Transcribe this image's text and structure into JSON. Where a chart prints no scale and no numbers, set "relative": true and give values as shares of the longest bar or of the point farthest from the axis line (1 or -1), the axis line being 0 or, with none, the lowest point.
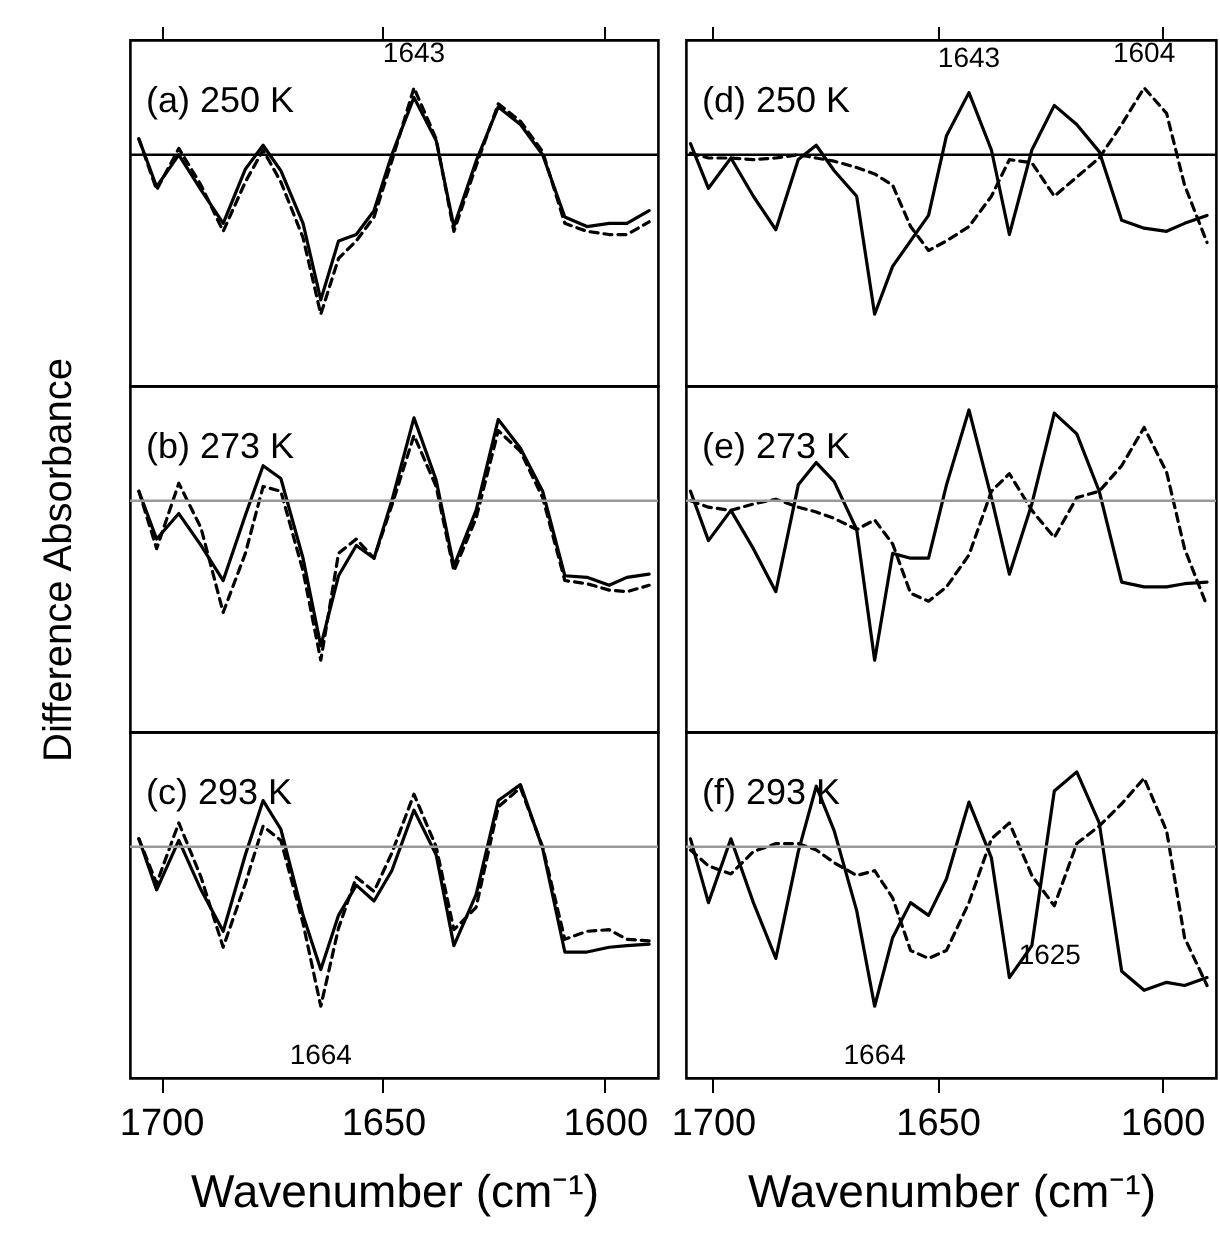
{
  "chart_data": [
    {
      "type": "line",
      "relative": true,
      "tick_labels": false,
      "xlim": [
        1707,
        1588
      ],
      "xticks": [
        {
          "value": 1700,
          "label": null
        },
        {
          "value": 1650,
          "label": null
        },
        {
          "value": 1600,
          "label": null
        }
      ],
      "annotations": [
        "(a) 250 K",
        {
          "text": "1643",
          "x": 1643,
          "y": 0.42
        }
      ],
      "ref_lines": [
        {
          "axis": "y",
          "value": 0,
          "color": "#000000"
        }
      ],
      "x": [
        1705,
        1701,
        1696,
        1691,
        1686,
        1681,
        1677,
        1673,
        1668,
        1664,
        1660,
        1656,
        1652,
        1648,
        1643,
        1638,
        1634,
        1629,
        1624,
        1619,
        1614,
        1609,
        1604,
        1599,
        1595,
        1590
      ],
      "series": [
        {
          "color": "#000000",
          "line_style": "solid",
          "values": [
            0.1,
            -0.2,
            0,
            -0.22,
            -0.43,
            -0.09,
            0.06,
            -0.1,
            -0.43,
            -0.91,
            -0.54,
            -0.5,
            -0.35,
            0,
            0.36,
            0.09,
            -0.45,
            -0.04,
            0.3,
            0.19,
            0,
            -0.39,
            -0.45,
            -0.43,
            -0.43,
            -0.35
          ]
        },
        {
          "color": "#000000",
          "line_style": "dashed",
          "values": [
            0.1,
            -0.22,
            0.04,
            -0.19,
            -0.48,
            -0.17,
            0.03,
            -0.17,
            -0.52,
            -1,
            -0.65,
            -0.54,
            -0.39,
            -0.04,
            0.42,
            0.1,
            -0.48,
            -0.07,
            0.32,
            0.21,
            0.02,
            -0.43,
            -0.48,
            -0.5,
            -0.5,
            -0.42
          ]
        }
      ]
    },
    {
      "type": "line",
      "relative": true,
      "xlim": [
        1707,
        1588
      ],
      "ylabel": "Difference Absorbance",
      "annotations": [
        "(b) 273 K"
      ],
      "ref_lines": [
        {
          "axis": "y",
          "value": 0,
          "color": "#999999"
        }
      ],
      "x": [
        1705,
        1701,
        1696,
        1691,
        1686,
        1681,
        1677,
        1673,
        1668,
        1664,
        1660,
        1656,
        1652,
        1648,
        1643,
        1638,
        1634,
        1629,
        1624,
        1619,
        1614,
        1609,
        1604,
        1599,
        1595,
        1590
      ],
      "series": [
        {
          "color": "#000000",
          "line_style": "solid",
          "values": [
            0.06,
            -0.24,
            -0.08,
            -0.28,
            -0.5,
            -0.09,
            0.22,
            0.14,
            -0.36,
            -0.91,
            -0.47,
            -0.28,
            -0.36,
            0,
            0.52,
            0.13,
            -0.41,
            -0.06,
            0.51,
            0.33,
            0.06,
            -0.47,
            -0.48,
            -0.53,
            -0.48,
            -0.46
          ]
        },
        {
          "color": "#000000",
          "line_style": "dashed",
          "values": [
            0.06,
            -0.3,
            0.11,
            -0.17,
            -0.7,
            -0.33,
            0.09,
            0.06,
            -0.44,
            -1,
            -0.33,
            -0.24,
            -0.36,
            -0.03,
            0.41,
            0.09,
            -0.44,
            -0.11,
            0.44,
            0.31,
            0.02,
            -0.5,
            -0.52,
            -0.56,
            -0.57,
            -0.53
          ]
        }
      ]
    },
    {
      "type": "line",
      "relative": true,
      "tick_labels": "x",
      "xlim": [
        1707,
        1588
      ],
      "xticks": [
        1700,
        1650,
        1600
      ],
      "xlabel": "Wavenumber (cm⁻¹)",
      "annotations": [
        "(c) 293 K",
        {
          "text": "1664",
          "x": 1664,
          "y": -1
        }
      ],
      "ref_lines": [
        {
          "axis": "y",
          "value": 0,
          "color": "#999999"
        }
      ],
      "x": [
        1705,
        1701,
        1696,
        1691,
        1686,
        1681,
        1677,
        1673,
        1668,
        1664,
        1660,
        1656,
        1652,
        1648,
        1643,
        1638,
        1634,
        1629,
        1624,
        1619,
        1614,
        1609,
        1604,
        1599,
        1595,
        1590
      ],
      "series": [
        {
          "color": "#000000",
          "line_style": "solid",
          "values": [
            0.05,
            -0.27,
            0.04,
            -0.27,
            -0.53,
            -0.05,
            0.29,
            0.11,
            -0.43,
            -0.77,
            -0.43,
            -0.24,
            -0.34,
            -0.15,
            0.23,
            -0.05,
            -0.62,
            -0.3,
            0.29,
            0.39,
            -0.01,
            -0.66,
            -0.66,
            -0.63,
            -0.62,
            -0.61
          ]
        },
        {
          "color": "#000000",
          "line_style": "dashed",
          "values": [
            0.05,
            -0.23,
            0.15,
            -0.19,
            -0.63,
            -0.23,
            0.13,
            0.04,
            -0.48,
            -1,
            -0.51,
            -0.19,
            -0.28,
            -0.04,
            0.33,
            0,
            -0.52,
            -0.38,
            0.25,
            0.37,
            0,
            -0.58,
            -0.53,
            -0.52,
            -0.58,
            -0.59
          ]
        }
      ]
    },
    {
      "type": "line",
      "relative": true,
      "tick_labels": false,
      "xlim": [
        1706,
        1588
      ],
      "xticks": [
        {
          "value": 1700,
          "label": null
        },
        {
          "value": 1650,
          "label": null
        },
        {
          "value": 1600,
          "label": null
        }
      ],
      "annotations": [
        "(d) 250 K",
        {
          "text": "1643",
          "x": 1643,
          "y": 0.39
        },
        {
          "text": "1604",
          "x": 1604,
          "y": 0.42
        }
      ],
      "ref_lines": [
        {
          "axis": "y",
          "value": 0,
          "color": "#000000"
        }
      ],
      "x": [
        1705,
        1701,
        1696,
        1691,
        1686,
        1681,
        1677,
        1673,
        1668,
        1664,
        1660,
        1656,
        1652,
        1648,
        1643,
        1638,
        1634,
        1629,
        1624,
        1619,
        1614,
        1609,
        1604,
        1599,
        1595,
        1590
      ],
      "series": [
        {
          "color": "#000000",
          "line_style": "solid",
          "values": [
            0.07,
            -0.21,
            -0.02,
            -0.26,
            -0.47,
            -0.03,
            0.06,
            -0.1,
            -0.26,
            -1,
            -0.7,
            -0.54,
            -0.38,
            0.12,
            0.39,
            0.03,
            -0.5,
            0.03,
            0.31,
            0.19,
            0.02,
            -0.41,
            -0.46,
            -0.48,
            -0.43,
            -0.38
          ]
        },
        {
          "color": "#000000",
          "line_style": "dashed",
          "values": [
            0.01,
            -0.02,
            -0.02,
            -0.03,
            -0.02,
            0,
            -0.02,
            -0.04,
            -0.08,
            -0.12,
            -0.19,
            -0.45,
            -0.6,
            -0.54,
            -0.45,
            -0.26,
            -0.03,
            -0.05,
            -0.26,
            -0.14,
            -0.02,
            0.19,
            0.42,
            0.26,
            -0.19,
            -0.55
          ]
        }
      ]
    },
    {
      "type": "line",
      "relative": true,
      "xlim": [
        1706,
        1588
      ],
      "annotations": [
        "(e) 273 K"
      ],
      "ref_lines": [
        {
          "axis": "y",
          "value": 0,
          "color": "#999999"
        }
      ],
      "x": [
        1705,
        1701,
        1696,
        1691,
        1686,
        1681,
        1677,
        1673,
        1668,
        1664,
        1660,
        1656,
        1652,
        1648,
        1643,
        1638,
        1634,
        1629,
        1624,
        1619,
        1614,
        1609,
        1604,
        1599,
        1595,
        1590
      ],
      "series": [
        {
          "color": "#000000",
          "line_style": "solid",
          "values": [
            0.06,
            -0.25,
            -0.06,
            -0.3,
            -0.57,
            0.1,
            0.24,
            0.12,
            -0.18,
            -1,
            -0.33,
            -0.36,
            -0.36,
            0.1,
            0.57,
            0.02,
            -0.46,
            -0.02,
            0.55,
            0.42,
            0.06,
            -0.51,
            -0.54,
            -0.54,
            -0.52,
            -0.51
          ]
        },
        {
          "color": "#000000",
          "line_style": "dashed",
          "values": [
            0,
            -0.04,
            -0.06,
            -0.02,
            0.01,
            -0.04,
            -0.07,
            -0.11,
            -0.18,
            -0.12,
            -0.27,
            -0.58,
            -0.63,
            -0.54,
            -0.34,
            0.06,
            0.17,
            -0.06,
            -0.23,
            0.02,
            0.06,
            0.22,
            0.46,
            0.18,
            -0.3,
            -0.66
          ]
        }
      ]
    },
    {
      "type": "line",
      "relative": true,
      "tick_labels": "x",
      "xlim": [
        1706,
        1588
      ],
      "xticks": [
        1700,
        1650,
        1600
      ],
      "xlabel": "Wavenumber (cm⁻¹)",
      "annotations": [
        "(f) 293 K",
        {
          "text": "1664",
          "x": 1664,
          "y": -1
        },
        {
          "text": "1625",
          "x": 1625,
          "y": -0.37
        }
      ],
      "ref_lines": [
        {
          "axis": "y",
          "value": 0,
          "color": "#999999"
        }
      ],
      "x": [
        1705,
        1701,
        1696,
        1691,
        1686,
        1681,
        1677,
        1673,
        1668,
        1664,
        1660,
        1656,
        1652,
        1648,
        1643,
        1638,
        1634,
        1629,
        1624,
        1619,
        1614,
        1609,
        1604,
        1599,
        1595,
        1590
      ],
      "series": [
        {
          "color": "#000000",
          "line_style": "solid",
          "values": [
            0.05,
            -0.35,
            0.05,
            -0.35,
            -0.7,
            -0.03,
            0.38,
            0.1,
            -0.4,
            -1,
            -0.57,
            -0.35,
            -0.43,
            -0.2,
            0.28,
            -0.07,
            -0.82,
            -0.62,
            0.35,
            0.47,
            0.15,
            -0.78,
            -0.9,
            -0.85,
            -0.87,
            -0.82
          ]
        },
        {
          "color": "#000000",
          "line_style": "dashed",
          "values": [
            -0.02,
            -0.12,
            -0.17,
            -0.03,
            0.02,
            0.02,
            -0.02,
            -0.1,
            -0.18,
            -0.15,
            -0.32,
            -0.65,
            -0.7,
            -0.65,
            -0.35,
            0.05,
            0.15,
            -0.18,
            -0.37,
            0.02,
            0.13,
            0.27,
            0.43,
            0.1,
            -0.57,
            -0.87
          ]
        }
      ]
    }
  ]
}
